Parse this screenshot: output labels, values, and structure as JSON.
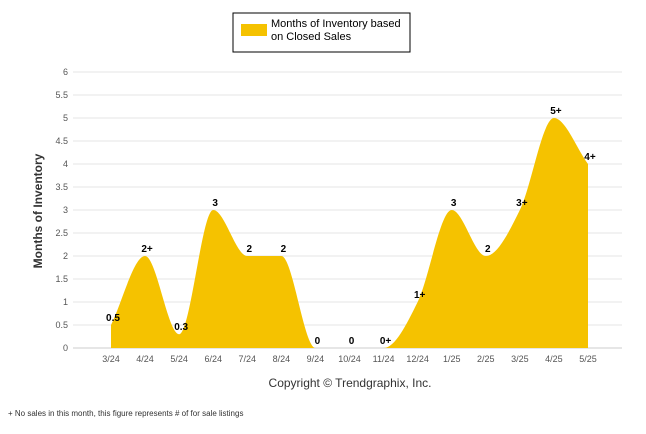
{
  "chart_data": {
    "type": "area",
    "categories": [
      "3/24",
      "4/24",
      "5/24",
      "6/24",
      "7/24",
      "8/24",
      "9/24",
      "10/24",
      "11/24",
      "12/24",
      "1/25",
      "2/25",
      "3/25",
      "4/25",
      "5/25"
    ],
    "values": [
      0.5,
      2,
      0.3,
      3,
      2,
      2,
      0,
      0,
      0,
      1,
      3,
      2,
      3,
      5,
      4
    ],
    "data_labels": [
      "0.5",
      "2+",
      "0.3",
      "3",
      "2",
      "2",
      "0",
      "0",
      "0+",
      "1+",
      "3",
      "2",
      "3+",
      "5+",
      "4+"
    ],
    "series": [
      {
        "name": "Months of Inventory based on Closed Sales",
        "values": [
          0.5,
          2,
          0.3,
          3,
          2,
          2,
          0,
          0,
          0,
          1,
          3,
          2,
          3,
          5,
          4
        ]
      }
    ],
    "legend_lines": [
      "Months of Inventory based",
      "on Closed Sales"
    ],
    "ylabel": "Months of Inventory",
    "ylim": [
      0,
      6
    ],
    "yticks": [
      "0",
      "0.5",
      "1",
      "1.5",
      "2",
      "2.5",
      "3",
      "3.5",
      "4",
      "4.5",
      "5",
      "5.5",
      "6"
    ],
    "grid": true,
    "legend_position": "top-center",
    "color": "#F5C200"
  },
  "footer": {
    "copyright": "Copyright © Trendgraphix, Inc.",
    "footnote": "+  No sales in this month, this figure represents # of for sale listings"
  }
}
